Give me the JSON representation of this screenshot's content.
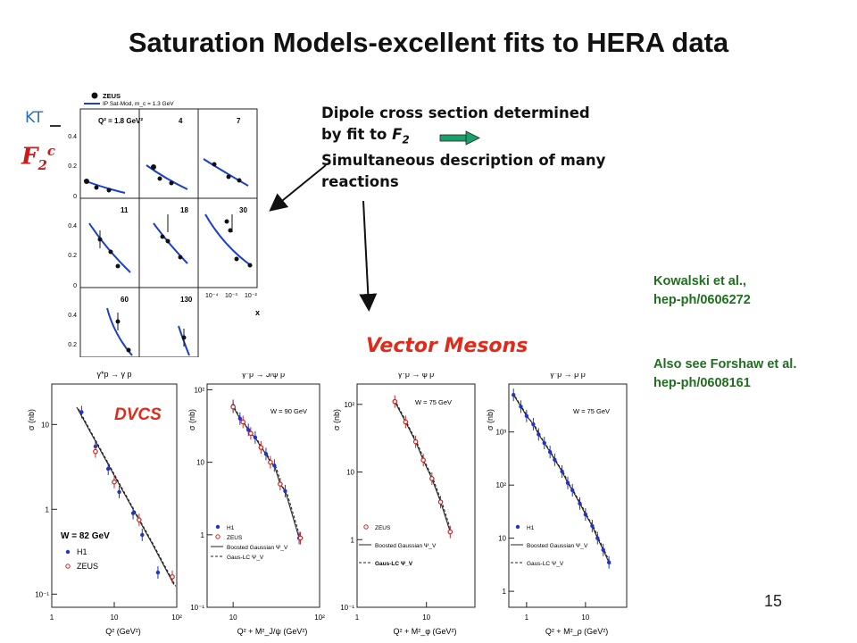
{
  "title": "Saturation Models-excellent fits to HERA data",
  "f2c": {
    "kt_label": "KT",
    "f2c_symbol": "F",
    "f2c_sub": "2",
    "f2c_sup": "c",
    "legend": [
      "ZEUS",
      "IP Sat-Mod, m_c = 1.3 GeV"
    ],
    "panel_q2": [
      "Q² = 1.8 GeV²",
      "4",
      "7",
      "11",
      "18",
      "30",
      "60",
      "130"
    ],
    "y_ticks": [
      "0.4",
      "0.2",
      "0"
    ],
    "x_ticks": [
      "10⁻⁴",
      "10⁻³",
      "10⁻²"
    ],
    "x_label": "x"
  },
  "annotation": {
    "line1": "Dipole cross section determined",
    "line2_a": "by fit to ",
    "line2_f": "F",
    "line2_sub": "2",
    "line3": "Simultaneous description of many",
    "line4": "reactions"
  },
  "vector_mesons_label": "Vector Mesons",
  "references": {
    "kowalski_1": "Kowalski et al.,",
    "kowalski_2": "hep-ph/0606272",
    "forshaw_1": "Also see Forshaw et al.",
    "forshaw_2": "hep-ph/0608161"
  },
  "page_number": "15",
  "colors": {
    "zeus": "#cc2222",
    "h1": "#2233cc",
    "curve": "#1a3fcc",
    "arrow_green": "#1aa06a",
    "dvcs": "#e02a1a"
  },
  "chart_data": [
    {
      "type": "scatter",
      "title": "γ*p → γ p",
      "annotation": "DVCS",
      "condition": "W = 82 GeV",
      "xlabel": "Q² (GeV²)",
      "ylabel": "σ (nb)",
      "x_scale": "log",
      "y_scale": "log",
      "xlim": [
        1,
        100
      ],
      "ylim": [
        0.07,
        30
      ],
      "x_ticks": [
        "1",
        "10",
        "10²"
      ],
      "y_ticks": [
        "10",
        "1",
        "10⁻¹"
      ],
      "series": [
        {
          "name": "H1",
          "x": [
            3,
            5,
            8,
            12,
            20,
            28,
            50
          ],
          "y": [
            14,
            5.5,
            3,
            1.6,
            0.9,
            0.5,
            0.18
          ]
        },
        {
          "name": "ZEUS",
          "x": [
            5,
            10,
            25,
            85
          ],
          "y": [
            4.8,
            2.1,
            0.75,
            0.16
          ]
        }
      ],
      "curve": {
        "x": [
          2.5,
          10,
          40,
          90
        ],
        "y": [
          16,
          2.5,
          0.4,
          0.13
        ]
      }
    },
    {
      "type": "scatter",
      "title": "γ*p → J/ψ p",
      "condition": "W = 90 GeV",
      "xlabel": "Q² + M²_J/ψ (GeV²)",
      "ylabel": "σ (nb)",
      "x_scale": "log",
      "y_scale": "log",
      "xlim": [
        5,
        100
      ],
      "ylim": [
        0.1,
        120
      ],
      "x_ticks": [
        "10",
        "10²"
      ],
      "y_ticks": [
        "10²",
        "10",
        "1",
        "10⁻¹"
      ],
      "series": [
        {
          "name": "H1",
          "x": [
            10,
            12,
            15,
            18,
            24,
            30,
            40,
            58
          ],
          "y": [
            60,
            40,
            28,
            22,
            13,
            9,
            4,
            0.9
          ]
        },
        {
          "name": "ZEUS",
          "x": [
            10,
            13,
            16,
            21,
            27,
            35,
            60
          ],
          "y": [
            58,
            36,
            25,
            16,
            10,
            5,
            0.9
          ]
        }
      ],
      "legend": [
        "H1",
        "ZEUS",
        "Boosted Gaussian Ψ_V",
        "Gaus-LC Ψ_V"
      ]
    },
    {
      "type": "scatter",
      "title": "γ*p → φ p",
      "condition": "W = 75 GeV",
      "xlabel": "Q² + M²_φ (GeV²)",
      "ylabel": "σ (nb)",
      "x_scale": "log",
      "y_scale": "log",
      "xlim": [
        1,
        50
      ],
      "ylim": [
        0.1,
        200
      ],
      "x_ticks": [
        "1",
        "10"
      ],
      "y_ticks": [
        "10²",
        "10",
        "1",
        "10⁻¹"
      ],
      "series": [
        {
          "name": "ZEUS",
          "x": [
            3.5,
            5,
            7,
            9,
            12,
            16,
            22
          ],
          "y": [
            110,
            55,
            28,
            15,
            8,
            3.6,
            1.3
          ]
        }
      ],
      "legend": [
        "ZEUS",
        "Boosted Gaussian Ψ_V",
        "Gaus-LC Ψ_V"
      ]
    },
    {
      "type": "scatter",
      "title": "γ*p → ρ p",
      "condition": "W = 75 GeV",
      "xlabel": "Q² + M²_ρ (GeV²)",
      "ylabel": "σ (nb)",
      "x_scale": "log",
      "y_scale": "log",
      "xlim": [
        0.5,
        50
      ],
      "ylim": [
        0.5,
        8000
      ],
      "x_ticks": [
        "1",
        "10"
      ],
      "y_ticks": [
        "10³",
        "10²",
        "10",
        "1"
      ],
      "series": [
        {
          "name": "H1",
          "x": [
            0.6,
            0.8,
            1,
            1.3,
            1.6,
            2,
            2.5,
            3,
            4,
            5,
            6,
            8,
            10,
            13,
            16,
            20,
            25
          ],
          "y": [
            5000,
            3000,
            2000,
            1400,
            900,
            620,
            420,
            300,
            180,
            110,
            80,
            45,
            28,
            17,
            10,
            6,
            3.5
          ]
        }
      ],
      "legend": [
        "H1",
        "Boosted Gaussian Ψ_V",
        "Gaus-LC Ψ_V"
      ]
    }
  ]
}
